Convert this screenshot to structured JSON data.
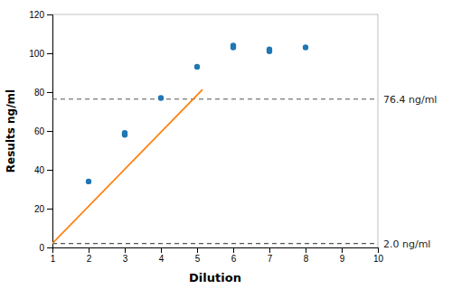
{
  "chart_data": {
    "type": "scatter",
    "xlabel": "Dilution",
    "ylabel": "Results ng/ml",
    "series": [
      {
        "type": "scatter",
        "marker": "circle",
        "x": [
          2,
          3,
          3,
          4,
          5,
          6,
          6,
          7,
          7,
          8
        ],
        "values": [
          34,
          58,
          59,
          77,
          93,
          103,
          104,
          101,
          102,
          103
        ]
      },
      {
        "type": "line",
        "line_style": "solid",
        "x": [
          1.0,
          5.15
        ],
        "values": [
          2.1,
          81.365
        ]
      }
    ],
    "annotations": [
      {
        "text": "76.4 ng/ml",
        "y": 76.4,
        "line_style": "dashed"
      },
      {
        "text": "2.0 ng/ml",
        "y": 2.0,
        "line_style": "dashed"
      }
    ],
    "xlim": [
      1,
      10
    ],
    "ylim": [
      0,
      120
    ],
    "xticks": [
      1,
      2,
      3,
      4,
      5,
      6,
      7,
      8,
      9,
      10
    ],
    "yticks": [
      0,
      20,
      40,
      60,
      80,
      100,
      120
    ],
    "grid": false
  }
}
